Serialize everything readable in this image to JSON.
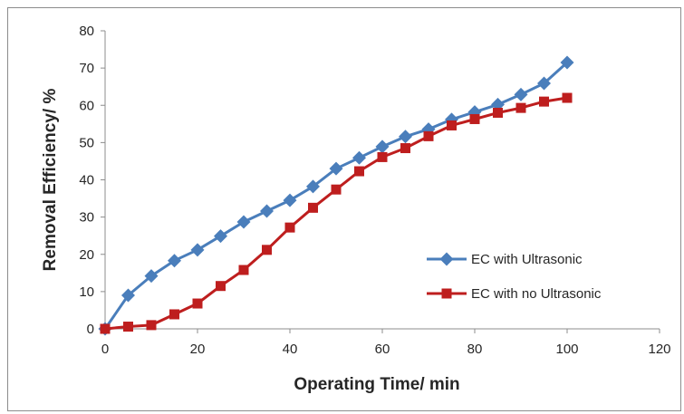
{
  "chart_data": {
    "type": "line",
    "title": "",
    "xlabel": "Operating Time/ min",
    "ylabel": "Removal Efficiency/ %",
    "xlim": [
      0,
      120
    ],
    "ylim": [
      0,
      80
    ],
    "x_ticks": [
      "0",
      "20",
      "40",
      "60",
      "80",
      "100",
      "120"
    ],
    "y_ticks": [
      "0",
      "10",
      "20",
      "30",
      "40",
      "50",
      "60",
      "70",
      "80"
    ],
    "grid": false,
    "legend_position": "right",
    "x": [
      0,
      5,
      10,
      15,
      20,
      25,
      30,
      35,
      40,
      45,
      50,
      55,
      60,
      65,
      70,
      75,
      80,
      85,
      90,
      95,
      100
    ],
    "series": [
      {
        "name": "EC with Ultrasonic",
        "color": "#4a7ebb",
        "marker": "diamond",
        "values": [
          0,
          9,
          14.2,
          18.3,
          21.2,
          24.9,
          28.7,
          31.6,
          34.5,
          38.2,
          43.0,
          45.9,
          48.9,
          51.6,
          53.6,
          56.2,
          58.2,
          60.2,
          62.9,
          65.9,
          71.5
        ]
      },
      {
        "name": "EC with no Ultrasonic",
        "color": "#be1e1e",
        "marker": "square",
        "values": [
          0,
          0.6,
          1.0,
          3.9,
          6.8,
          11.5,
          15.8,
          21.2,
          27.2,
          32.5,
          37.4,
          42.3,
          46.1,
          48.5,
          51.7,
          54.6,
          56.3,
          58.0,
          59.3,
          61.0,
          62.0
        ]
      }
    ]
  }
}
